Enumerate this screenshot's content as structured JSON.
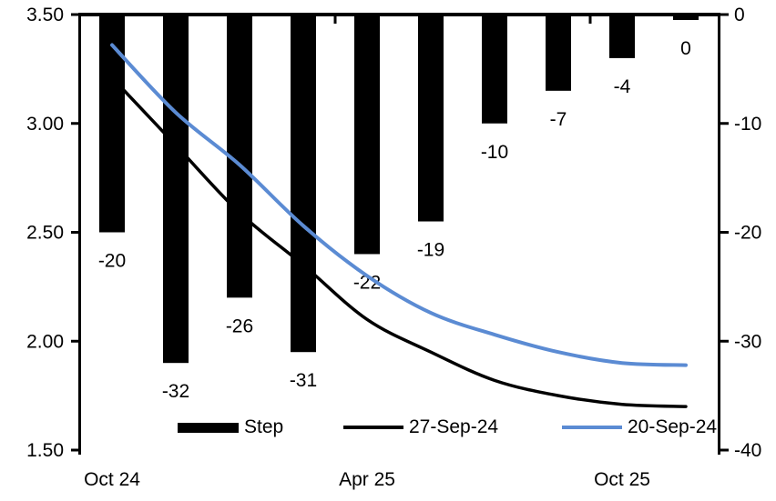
{
  "chart_data": {
    "type": "combo",
    "n_categories": 10,
    "x_axis": {
      "tick_labels": [
        "Oct 24",
        "Apr 25",
        "Oct 25"
      ],
      "tick_label_category_index": [
        0,
        4,
        8
      ],
      "boundary_tick_category_index": [
        4,
        8
      ],
      "axis_position": "top (crosses at 0 of right axis), labels low"
    },
    "left_axis": {
      "min": 1.5,
      "max": 3.5,
      "tick_labels": [
        "3.50",
        "3.00",
        "2.50",
        "2.00",
        "1.50"
      ]
    },
    "right_axis": {
      "min": -40,
      "max": 0,
      "tick_labels": [
        "0",
        "-10",
        "-20",
        "-30",
        "-40"
      ]
    },
    "series": [
      {
        "name": "Step",
        "type": "bar",
        "axis": "right",
        "color": "#000000",
        "values": [
          -20,
          -32,
          -26,
          -31,
          -22,
          -19,
          -10,
          -7,
          -4,
          0
        ],
        "data_labels": [
          "-20",
          "-32",
          "-26",
          "-31",
          "-22",
          "-19",
          "-10",
          "-7",
          "-4",
          "0"
        ]
      },
      {
        "name": "27-Sep-24",
        "type": "line",
        "axis": "left",
        "color": "#000000",
        "values": [
          3.21,
          2.9,
          2.59,
          2.35,
          2.1,
          1.95,
          1.82,
          1.75,
          1.71,
          1.7
        ]
      },
      {
        "name": "20-Sep-24",
        "type": "line",
        "axis": "left",
        "color": "#5b8bd3",
        "values": [
          3.36,
          3.05,
          2.81,
          2.53,
          2.3,
          2.13,
          2.03,
          1.95,
          1.9,
          1.89
        ]
      }
    ],
    "legend": {
      "position": "bottom-inside",
      "entries": [
        "Step",
        "27-Sep-24",
        "20-Sep-24"
      ]
    },
    "grid": "off",
    "title": ""
  },
  "colors": {
    "bar": "#000000",
    "line_27sep": "#000000",
    "line_20sep": "#5b8bd3",
    "axis": "#000000",
    "background": "#ffffff"
  }
}
